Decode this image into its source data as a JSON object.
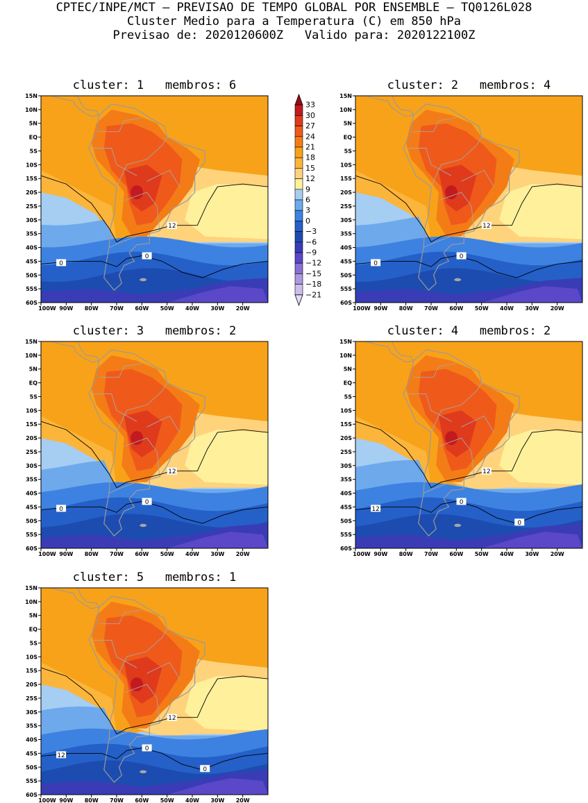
{
  "header": {
    "line1": "CPTEC/INPE/MCT — PREVISAO DE TEMPO GLOBAL POR ENSEMBLE — TQ0126L028",
    "line2": "Cluster Medio para a Temperatura (C) em 850 hPa",
    "line3": "Previsao de: 2020120600Z   Valido para: 2020122100Z"
  },
  "axes": {
    "lat_labels": [
      "15N",
      "10N",
      "5N",
      "EQ",
      "5S",
      "10S",
      "15S",
      "20S",
      "25S",
      "30S",
      "35S",
      "40S",
      "45S",
      "50S",
      "55S",
      "60S"
    ],
    "lon_labels": [
      "100W",
      "90W",
      "80W",
      "70W",
      "60W",
      "50W",
      "40W",
      "30W",
      "20W"
    ]
  },
  "colorbar": {
    "levels": [
      "33",
      "30",
      "27",
      "24",
      "21",
      "18",
      "15",
      "12",
      "9",
      "6",
      "3",
      "0",
      "−3",
      "−6",
      "−9",
      "−12",
      "−15",
      "−18",
      "−21"
    ],
    "colors": [
      "#9b0a18",
      "#c21a1e",
      "#e03a1c",
      "#ef5a1a",
      "#f47c17",
      "#f8a21a",
      "#fbb53a",
      "#fed37b",
      "#fff09c",
      "#a6cdf2",
      "#6ea9ec",
      "#3d82e1",
      "#2460c8",
      "#1d4cb0",
      "#3a3cb6",
      "#5a48c8",
      "#8a70d6",
      "#ad98e2",
      "#cdbdee",
      "#e4dbf6"
    ]
  },
  "panels": [
    {
      "title": "cluster: 1   membros: 6",
      "contour_labels": [
        "12",
        "0",
        "0"
      ]
    },
    {
      "title": "cluster: 2   membros: 4",
      "contour_labels": [
        "12",
        "0",
        "0"
      ]
    },
    {
      "title": "cluster: 3   membros: 2",
      "contour_labels": [
        "12",
        "0",
        "0"
      ]
    },
    {
      "title": "cluster: 4   membros: 2",
      "contour_labels": [
        "12",
        "12",
        "0",
        "0"
      ]
    },
    {
      "title": "cluster: 5   membros: 1",
      "contour_labels": [
        "12",
        "12",
        "0",
        "0"
      ]
    }
  ]
}
